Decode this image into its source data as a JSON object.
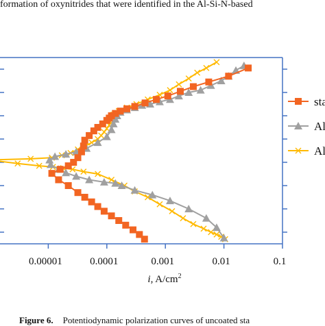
{
  "header_text": "formation of oxynitrides that were identified in the Al-Si-N-based",
  "caption": {
    "figure_label": "Figure 6.",
    "text": "Potentiodynamic polarization curves of uncoated sta"
  },
  "chart_data": {
    "type": "line",
    "title": "",
    "xlabel": "i, A/cm²",
    "xlabel_var": "i",
    "xlabel_unit": ", A/cm",
    "xlabel_sup": "2",
    "ylabel": "",
    "xscale": "log",
    "xlim": [
      1e-06,
      0.1
    ],
    "ylim": [
      -1.1,
      0.5
    ],
    "x_ticks": [
      1e-05,
      0.0001,
      0.001,
      0.01,
      0.1
    ],
    "x_tick_labels": [
      "0.00001",
      "0.0001",
      "0.001",
      "0.01",
      "0.1"
    ],
    "y_ticks": [
      -1.0,
      -0.8,
      -0.6,
      -0.4,
      -0.2,
      0.0,
      0.2,
      0.4
    ],
    "grid": false,
    "legend_position": "right",
    "colors": {
      "axis": "#4472c4",
      "frame": "#4472c4"
    },
    "series": [
      {
        "name": "sta",
        "color": "#f26522",
        "marker": "square",
        "x": [
          0.026,
          0.012,
          0.0055,
          0.003,
          0.0018,
          0.0011,
          0.0007,
          0.00045,
          0.0003,
          0.00022,
          0.00017,
          0.00014,
          0.00012,
          0.00011,
          0.0001,
          8.5e-05,
          7e-05,
          6e-05,
          5e-05,
          4.2e-05,
          4e-05,
          3.7e-05,
          3.2e-05,
          2.7e-05,
          2.2e-05,
          1.6e-05,
          1.15e-05,
          1.5e-05,
          2.2e-05,
          3.2e-05,
          4.2e-05,
          5.5e-05,
          7e-05,
          9e-05,
          0.00012,
          0.00016,
          0.00021,
          0.00028,
          0.00036,
          0.00044
        ],
        "y": [
          0.41,
          0.34,
          0.29,
          0.25,
          0.21,
          0.17,
          0.14,
          0.11,
          0.08,
          0.06,
          0.04,
          0.02,
          0.0,
          -0.02,
          -0.04,
          -0.07,
          -0.1,
          -0.13,
          -0.17,
          -0.21,
          -0.26,
          -0.31,
          -0.36,
          -0.4,
          -0.43,
          -0.46,
          -0.495,
          -0.55,
          -0.6,
          -0.66,
          -0.7,
          -0.74,
          -0.78,
          -0.82,
          -0.86,
          -0.9,
          -0.94,
          -0.98,
          -1.02,
          -1.06
        ]
      },
      {
        "name": "Al",
        "color": "#a0a0a0",
        "marker": "triangle",
        "x": [
          0.022,
          0.016,
          0.012,
          0.009,
          0.006,
          0.004,
          0.0025,
          0.0017,
          0.0012,
          0.0008,
          0.00055,
          0.0004,
          0.0003,
          0.00022,
          0.00017,
          0.00015,
          0.00014,
          0.00013,
          0.00012,
          0.0001,
          7e-05,
          4.5e-05,
          3e-05,
          2e-05,
          1.3e-05,
          1.05e-05,
          1.1e-05,
          1.5e-05,
          2e-05,
          3e-05,
          5e-05,
          9e-05,
          0.00014,
          0.00018,
          0.0003,
          0.0006,
          0.0012,
          0.0025,
          0.005,
          0.0075,
          0.01
        ],
        "y": [
          0.43,
          0.39,
          0.34,
          0.3,
          0.26,
          0.22,
          0.2,
          0.17,
          0.14,
          0.12,
          0.1,
          0.09,
          0.07,
          0.05,
          0.03,
          0.0,
          -0.03,
          -0.07,
          -0.12,
          -0.18,
          -0.23,
          -0.28,
          -0.31,
          -0.33,
          -0.35,
          -0.38,
          -0.42,
          -0.46,
          -0.49,
          -0.52,
          -0.55,
          -0.57,
          -0.58,
          -0.6,
          -0.64,
          -0.68,
          -0.73,
          -0.8,
          -0.88,
          -0.96,
          -1.05
        ]
      },
      {
        "name": "Al",
        "color": "#ffb900",
        "marker": "x",
        "x": [
          0.0075,
          0.005,
          0.0035,
          0.0025,
          0.0017,
          0.0012,
          0.0008,
          0.0005,
          0.00032,
          0.00022,
          0.00016,
          0.00013,
          0.00012,
          0.000115,
          0.00011,
          0.0001,
          9e-05,
          8e-05,
          7e-05,
          5.5e-05,
          4.3e-05,
          3.2e-05,
          2.4e-05,
          1.7e-05,
          1.15e-05,
          5e-06,
          1e-06,
          3e-06,
          7e-06,
          1.2e-05,
          1.8e-05,
          2.6e-05,
          4e-05,
          7e-05,
          0.00012,
          0.0002,
          0.0003,
          0.0005,
          0.0008,
          0.0013,
          0.002,
          0.003,
          0.0045,
          0.006,
          0.0075,
          0.009,
          0.0105
        ],
        "y": [
          0.46,
          0.41,
          0.37,
          0.32,
          0.27,
          0.22,
          0.18,
          0.14,
          0.1,
          0.07,
          0.04,
          0.01,
          -0.02,
          -0.05,
          -0.08,
          -0.11,
          -0.14,
          -0.17,
          -0.2,
          -0.23,
          -0.26,
          -0.29,
          -0.32,
          -0.34,
          -0.36,
          -0.37,
          -0.38,
          -0.41,
          -0.43,
          -0.44,
          -0.45,
          -0.46,
          -0.48,
          -0.5,
          -0.55,
          -0.6,
          -0.65,
          -0.7,
          -0.76,
          -0.82,
          -0.88,
          -0.93,
          -0.97,
          -1.0,
          -1.02,
          -1.04,
          -1.06
        ]
      }
    ]
  }
}
